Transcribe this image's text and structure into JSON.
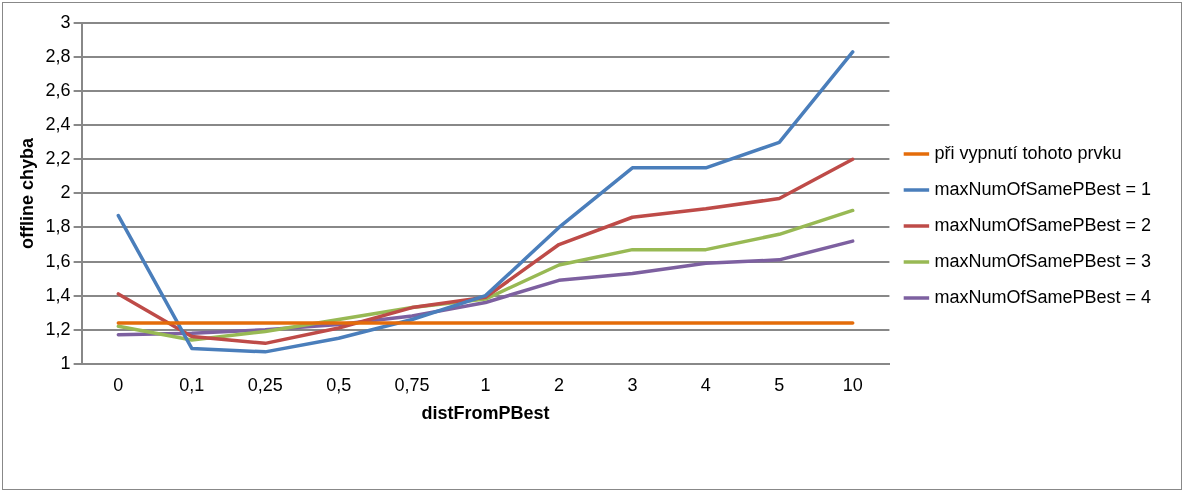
{
  "chart_data": {
    "type": "line",
    "xlabel": "distFromPBest",
    "ylabel": "offline chyba",
    "categories": [
      "0",
      "0,1",
      "0,25",
      "0,5",
      "0,75",
      "1",
      "2",
      "3",
      "4",
      "5",
      "10"
    ],
    "series": [
      {
        "name": "při vypnutí tohoto prvku",
        "color": "#e46c0a",
        "values": [
          1.24,
          1.24,
          1.24,
          1.24,
          1.24,
          1.24,
          1.24,
          1.24,
          1.24,
          1.24,
          1.24
        ]
      },
      {
        "name": "maxNumOfSamePBest = 1",
        "color": "#4a7ebb",
        "values": [
          1.87,
          1.09,
          1.07,
          1.15,
          1.26,
          1.4,
          1.8,
          2.15,
          2.15,
          2.3,
          2.83
        ]
      },
      {
        "name": "maxNumOfSamePBest = 2",
        "color": "#be4b48",
        "values": [
          1.41,
          1.16,
          1.12,
          1.21,
          1.33,
          1.39,
          1.7,
          1.86,
          1.91,
          1.97,
          2.2
        ]
      },
      {
        "name": "maxNumOfSamePBest = 3",
        "color": "#98b954",
        "values": [
          1.22,
          1.14,
          1.19,
          1.26,
          1.33,
          1.38,
          1.58,
          1.67,
          1.67,
          1.76,
          1.9
        ]
      },
      {
        "name": "maxNumOfSamePBest = 4",
        "color": "#7d60a0",
        "values": [
          1.17,
          1.18,
          1.2,
          1.23,
          1.28,
          1.36,
          1.49,
          1.53,
          1.59,
          1.61,
          1.72
        ]
      }
    ],
    "ylim": [
      1,
      3
    ],
    "yticks": [
      1,
      {
        "value": 1.2,
        "label": "1,2"
      },
      {
        "value": 1.4,
        "label": "1,4"
      },
      {
        "value": 1.6,
        "label": "1,6"
      },
      {
        "value": 1.8,
        "label": "1,8"
      },
      2,
      {
        "value": 2.2,
        "label": "2,2"
      },
      {
        "value": 2.4,
        "label": "2,4"
      },
      {
        "value": 2.6,
        "label": "2,6"
      },
      {
        "value": 2.8,
        "label": "2,8"
      },
      3
    ],
    "grid": "y",
    "legend": "right",
    "marker": "none",
    "line_style": "solid"
  }
}
